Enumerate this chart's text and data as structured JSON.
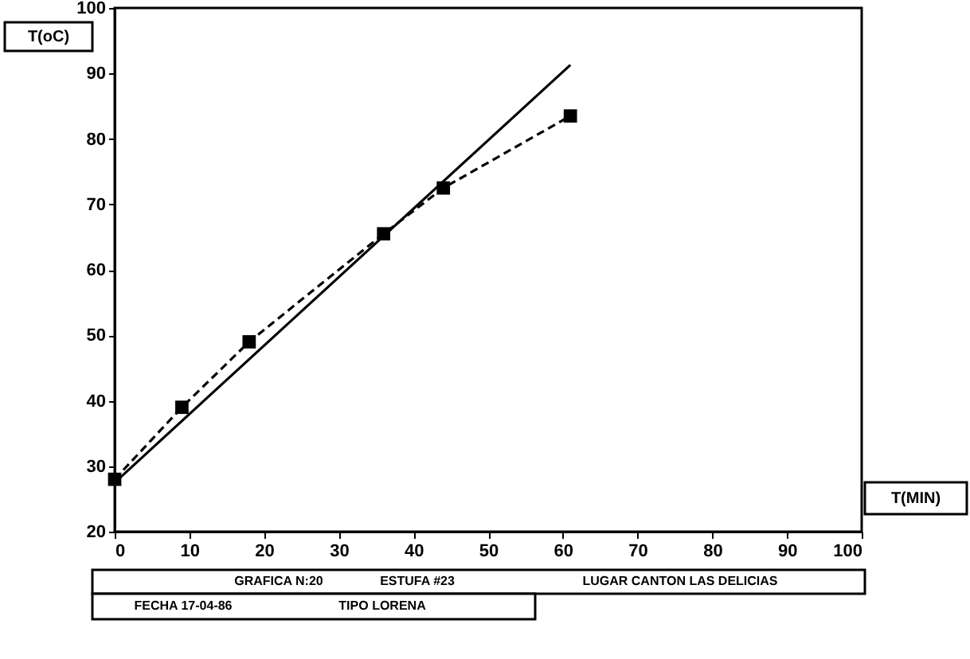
{
  "chart_data": {
    "type": "line",
    "xlabel": "T(MIN)",
    "ylabel": "T(oC)",
    "xlim": [
      0,
      100
    ],
    "ylim": [
      20,
      100
    ],
    "xticks": [
      0,
      10,
      20,
      30,
      40,
      50,
      60,
      70,
      80,
      90,
      100
    ],
    "yticks": [
      20,
      30,
      40,
      50,
      60,
      70,
      80,
      90,
      100
    ],
    "grid": false,
    "series": [
      {
        "color": "#000000",
        "marker": "square",
        "line_style": "dashed",
        "x": [
          0,
          9,
          18,
          36,
          44,
          61
        ],
        "values": [
          28,
          39,
          49,
          65.5,
          72.5,
          83.5
        ]
      },
      {
        "type": "line",
        "color": "#000000",
        "marker": "none",
        "line_style": "solid",
        "x": [
          0,
          61
        ],
        "values": [
          27.5,
          91.3
        ]
      }
    ],
    "annotations": [
      "GRAFICA N:20",
      "ESTUFA #23",
      "LUGAR CANTON LAS DELICIAS",
      "FECHA 17-04-86",
      "TIPO LORENA"
    ]
  }
}
